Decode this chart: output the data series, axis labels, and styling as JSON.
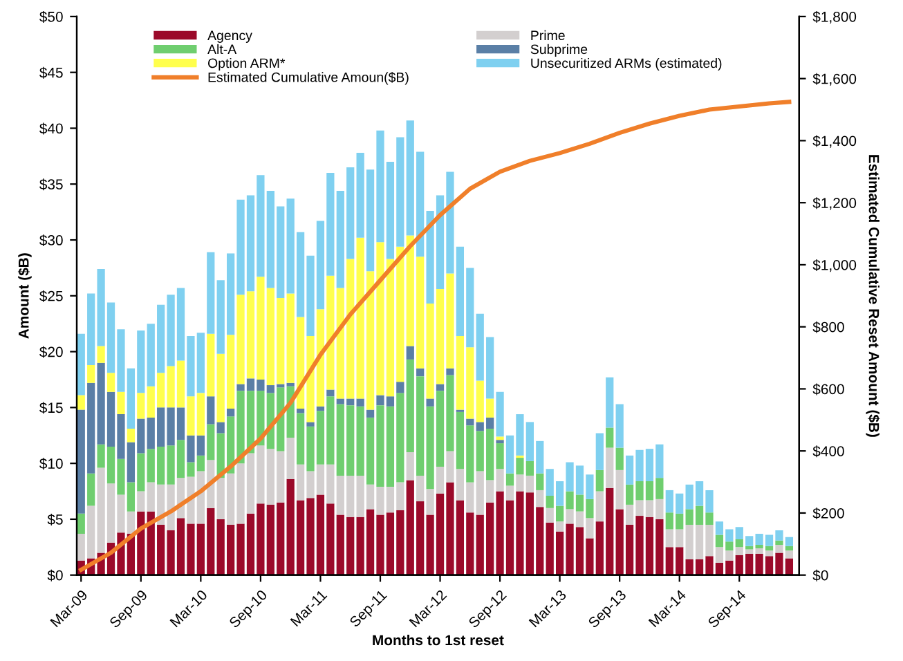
{
  "chart_data": {
    "type": "bar",
    "stacked": true,
    "xlabel": "Months to 1st reset",
    "ylabel": "Amount ($B)",
    "y2label": "Estimated Cumulative Reset Amount ($B)",
    "x": [
      "2009-03",
      "2009-04",
      "2009-05",
      "2009-06",
      "2009-07",
      "2009-08",
      "2009-09",
      "2009-10",
      "2009-11",
      "2009-12",
      "2010-01",
      "2010-02",
      "2010-03",
      "2010-04",
      "2010-05",
      "2010-06",
      "2010-07",
      "2010-08",
      "2010-09",
      "2010-10",
      "2010-11",
      "2010-12",
      "2011-01",
      "2011-02",
      "2011-03",
      "2011-04",
      "2011-05",
      "2011-06",
      "2011-07",
      "2011-08",
      "2011-09",
      "2011-10",
      "2011-11",
      "2011-12",
      "2012-01",
      "2012-02",
      "2012-03",
      "2012-04",
      "2012-05",
      "2012-06",
      "2012-07",
      "2012-08",
      "2012-09",
      "2012-10",
      "2012-11",
      "2012-12",
      "2013-01",
      "2013-02",
      "2013-03",
      "2013-04",
      "2013-05",
      "2013-06",
      "2013-07",
      "2013-08",
      "2013-09",
      "2013-10",
      "2013-11",
      "2013-12",
      "2014-01",
      "2014-02",
      "2014-03",
      "2014-04",
      "2014-05",
      "2014-06",
      "2014-07",
      "2014-08",
      "2014-09",
      "2014-10",
      "2014-11",
      "2014-12",
      "2015-01",
      "2015-02"
    ],
    "xlim": [
      "2009-02-18",
      "2015-03-01"
    ],
    "xticks": [
      {
        "value": "2009-03",
        "label": "Mar-09"
      },
      {
        "value": "2009-09",
        "label": "Sep-09"
      },
      {
        "value": "2010-03",
        "label": "Mar-10"
      },
      {
        "value": "2010-09",
        "label": "Sep-10"
      },
      {
        "value": "2011-03",
        "label": "Mar-11"
      },
      {
        "value": "2011-09",
        "label": "Sep-11"
      },
      {
        "value": "2012-03",
        "label": "Mar-12"
      },
      {
        "value": "2012-09",
        "label": "Sep-12"
      },
      {
        "value": "2013-03",
        "label": "Mar-13"
      },
      {
        "value": "2013-09",
        "label": "Sep-13"
      },
      {
        "value": "2014-03",
        "label": "Mar-14"
      },
      {
        "value": "2014-09",
        "label": "Sep-14"
      }
    ],
    "ylim": [
      0,
      50
    ],
    "yticks": [
      {
        "value": 0,
        "label": "$0"
      },
      {
        "value": 5,
        "label": "$5"
      },
      {
        "value": 10,
        "label": "$10"
      },
      {
        "value": 15,
        "label": "$15"
      },
      {
        "value": 20,
        "label": "$20"
      },
      {
        "value": 25,
        "label": "$25"
      },
      {
        "value": 30,
        "label": "$30"
      },
      {
        "value": 35,
        "label": "$35"
      },
      {
        "value": 40,
        "label": "$40"
      },
      {
        "value": 45,
        "label": "$45"
      },
      {
        "value": 50,
        "label": "$50"
      }
    ],
    "y2lim": [
      0,
      1800
    ],
    "y2ticks": [
      {
        "value": 0,
        "label": "$0"
      },
      {
        "value": 200,
        "label": "$200"
      },
      {
        "value": 400,
        "label": "$400"
      },
      {
        "value": 600,
        "label": "$600"
      },
      {
        "value": 800,
        "label": "$800"
      },
      {
        "value": 1000,
        "label": "$1,000"
      },
      {
        "value": 1200,
        "label": "$1,200"
      },
      {
        "value": 1400,
        "label": "$1,400"
      },
      {
        "value": 1600,
        "label": "$1,600"
      },
      {
        "value": 1800,
        "label": "$1,800"
      }
    ],
    "grid": false,
    "legend": "top",
    "series": [
      {
        "name": "Agency",
        "color": "#9b0a2a",
        "values": [
          1.3,
          1.5,
          2.0,
          2.9,
          3.8,
          3.7,
          5.7,
          5.7,
          4.5,
          4.0,
          5.1,
          4.6,
          4.6,
          6.0,
          5.0,
          4.5,
          4.6,
          5.5,
          6.4,
          6.3,
          6.5,
          8.6,
          6.7,
          6.9,
          7.2,
          6.4,
          5.4,
          5.2,
          5.2,
          5.9,
          5.4,
          5.6,
          5.8,
          8.5,
          6.6,
          5.4,
          7.3,
          8.3,
          6.7,
          5.6,
          5.4,
          6.5,
          7.5,
          6.7,
          7.5,
          7.4,
          6.1,
          4.7,
          3.9,
          4.6,
          4.3,
          3.3,
          4.8,
          7.8,
          5.9,
          4.5,
          5.3,
          5.2,
          5.0,
          2.5,
          2.5,
          1.4,
          1.4,
          1.7,
          1.1,
          1.3,
          1.8,
          1.9,
          1.9,
          1.7,
          2.0,
          1.5
        ]
      },
      {
        "name": "Prime",
        "color": "#d3cfcf",
        "values": [
          2.4,
          4.7,
          7.6,
          5.3,
          3.4,
          2.0,
          1.8,
          2.6,
          3.6,
          4.1,
          3.6,
          4.2,
          4.7,
          4.3,
          3.7,
          4.6,
          5.4,
          5.4,
          5.2,
          5.0,
          4.6,
          3.7,
          3.2,
          2.4,
          2.7,
          3.5,
          3.5,
          3.7,
          3.7,
          2.2,
          2.5,
          2.3,
          2.5,
          2.5,
          2.3,
          2.3,
          2.4,
          2.8,
          2.8,
          2.7,
          3.9,
          2.0,
          2.0,
          1.3,
          1.5,
          1.5,
          1.5,
          1.3,
          0.9,
          1.3,
          1.4,
          1.8,
          2.7,
          3.6,
          3.5,
          1.8,
          1.4,
          1.5,
          1.8,
          1.6,
          1.6,
          3.1,
          3.1,
          2.8,
          1.4,
          0.9,
          0.7,
          0.4,
          0.5,
          0.5,
          0.7,
          0.7
        ]
      },
      {
        "name": "Alt-A",
        "color": "#6fce6f",
        "values": [
          1.8,
          2.9,
          2.1,
          3.3,
          3.2,
          2.6,
          3.4,
          3.0,
          3.4,
          3.5,
          3.4,
          1.3,
          1.4,
          3.2,
          4.0,
          5.1,
          6.5,
          5.6,
          4.9,
          5.0,
          5.7,
          4.6,
          4.6,
          4.0,
          4.8,
          6.1,
          6.4,
          6.3,
          6.2,
          6.0,
          7.3,
          7.2,
          8.0,
          8.3,
          8.9,
          7.4,
          6.8,
          6.8,
          5.1,
          5.1,
          3.6,
          4.6,
          2.3,
          1.1,
          1.5,
          1.3,
          1.5,
          1.1,
          1.4,
          1.6,
          1.5,
          1.7,
          1.9,
          1.8,
          2.0,
          1.8,
          1.7,
          1.7,
          1.9,
          1.5,
          1.4,
          1.4,
          1.7,
          1.1,
          1.1,
          0.8,
          0.7,
          0.3,
          0.3,
          0.4,
          0.4,
          0.4
        ]
      },
      {
        "name": "Subprime",
        "color": "#5a7fa6",
        "values": [
          9.3,
          8.1,
          7.3,
          4.9,
          4.0,
          3.6,
          3.1,
          2.8,
          3.5,
          3.4,
          2.9,
          2.4,
          1.8,
          2.5,
          1.0,
          0.7,
          0.6,
          1.1,
          1.0,
          0.7,
          0.3,
          0.3,
          0.4,
          0.4,
          0.4,
          0.6,
          0.5,
          0.6,
          0.7,
          0.7,
          0.9,
          0.9,
          1.0,
          1.2,
          0.7,
          0.7,
          0.6,
          0.6,
          0.2,
          0.6,
          0.8,
          1.0,
          0.3,
          0,
          0,
          0,
          0,
          0,
          0,
          0,
          0,
          0,
          0,
          0,
          0,
          0,
          0,
          0,
          0,
          0,
          0,
          0,
          0,
          0,
          0,
          0,
          0,
          0,
          0,
          0,
          0,
          0
        ]
      },
      {
        "name": "Option ARM*",
        "color": "#ffff4d",
        "values": [
          1.3,
          1.6,
          1.5,
          1.7,
          2.0,
          1.2,
          2.3,
          2.8,
          3.1,
          3.7,
          4.2,
          3.5,
          3.8,
          5.6,
          6.1,
          6.6,
          8.0,
          7.8,
          9.2,
          8.7,
          7.7,
          8.0,
          8.2,
          7.7,
          8.7,
          10.2,
          9.9,
          12.5,
          14.4,
          12.4,
          13.7,
          12.3,
          12.1,
          9.9,
          10.0,
          8.5,
          8.5,
          8.5,
          6.6,
          6.4,
          3.7,
          1.7,
          0.3,
          0,
          0.2,
          0,
          0,
          0,
          0,
          0,
          0,
          0,
          0,
          0,
          0,
          0,
          0,
          0,
          0,
          0,
          0,
          0,
          0,
          0,
          0,
          0,
          0,
          0,
          0,
          0,
          0,
          0
        ]
      },
      {
        "name": "Unsecuritized ARMs (estimated)",
        "color": "#7fd0f0",
        "values": [
          5.5,
          6.4,
          6.9,
          6.3,
          5.6,
          5.4,
          5.6,
          5.6,
          6.1,
          6.4,
          6.5,
          5.4,
          5.4,
          7.3,
          6.6,
          7.3,
          8.5,
          8.6,
          9.1,
          8.7,
          8.2,
          8.5,
          7.6,
          7.2,
          7.9,
          9.2,
          8.7,
          8.2,
          7.6,
          9.1,
          10.0,
          8.7,
          9.8,
          10.3,
          9.4,
          8.3,
          8.4,
          9.1,
          8.0,
          7.1,
          6.0,
          5.5,
          4.0,
          3.4,
          3.7,
          3.5,
          2.9,
          2.4,
          2.2,
          2.6,
          2.6,
          2.2,
          3.3,
          4.5,
          3.9,
          2.6,
          2.8,
          2.9,
          3.0,
          2.0,
          1.8,
          2.2,
          2.2,
          2.0,
          1.2,
          1.1,
          1.1,
          0.9,
          1.0,
          1.0,
          0.9,
          0.8
        ]
      },
      {
        "name": "Estimated Cumulative Amoun($B)",
        "type": "line",
        "axis": "y2",
        "color": "#f07f2a",
        "line_style": "solid",
        "marker": "none",
        "x": [
          "2009-03",
          "2009-06",
          "2009-09",
          "2009-12",
          "2010-03",
          "2010-06",
          "2010-09",
          "2010-12",
          "2011-03",
          "2011-06",
          "2011-09",
          "2011-12",
          "2012-03",
          "2012-06",
          "2012-09",
          "2012-12",
          "2013-03",
          "2013-06",
          "2013-09",
          "2013-12",
          "2014-03",
          "2014-06",
          "2014-09",
          "2014-12",
          "2015-02"
        ],
        "values": [
          17,
          72,
          150,
          205,
          270,
          350,
          440,
          555,
          710,
          840,
          950,
          1060,
          1160,
          1245,
          1300,
          1335,
          1360,
          1390,
          1425,
          1455,
          1480,
          1500,
          1510,
          1520,
          1525
        ]
      }
    ]
  }
}
